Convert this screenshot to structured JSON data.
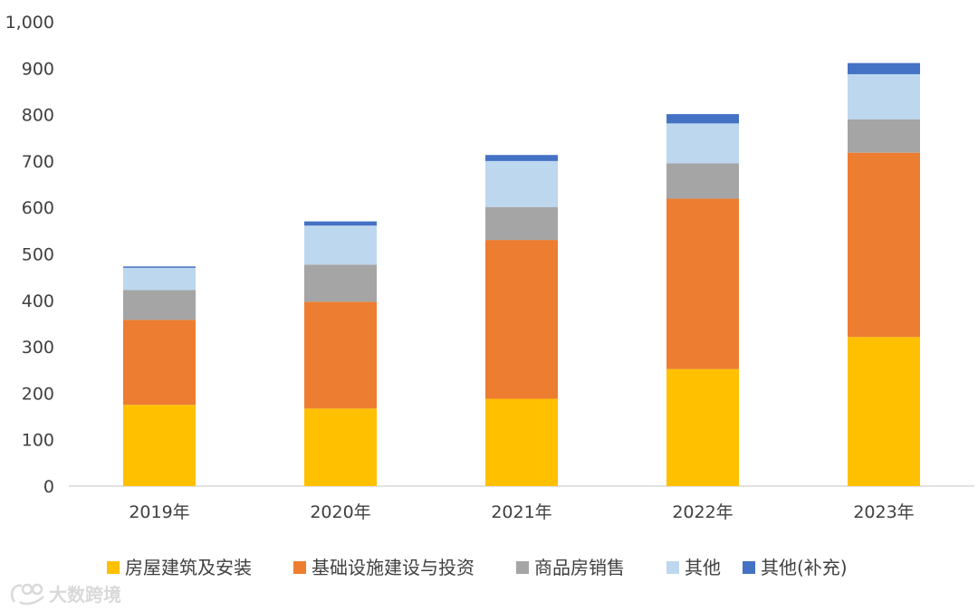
{
  "chart_data": {
    "type": "bar",
    "stacked": true,
    "categories": [
      "2019年",
      "2020年",
      "2021年",
      "2022年",
      "2023年"
    ],
    "series": [
      {
        "name": "房屋建筑及安装",
        "color": "#FFC000",
        "values": [
          175,
          167,
          188,
          252,
          321
        ]
      },
      {
        "name": "基础设施建设与投资",
        "color": "#ED7D31",
        "values": [
          183,
          230,
          342,
          367,
          397
        ]
      },
      {
        "name": "商品房销售",
        "color": "#A5A5A5",
        "values": [
          64,
          80,
          71,
          76,
          72
        ]
      },
      {
        "name": "其他",
        "color": "#BDD7EE",
        "values": [
          48,
          84,
          99,
          86,
          97
        ]
      },
      {
        "name": "其他(补充)",
        "color": "#4472C4",
        "values": [
          3,
          9,
          13,
          20,
          24
        ]
      }
    ],
    "yticks": [
      "0",
      "100",
      "200",
      "300",
      "400",
      "500",
      "600",
      "700",
      "800",
      "900",
      "1,000"
    ],
    "ylim": [
      0,
      1000
    ],
    "grid": false,
    "legend_position": "bottom"
  },
  "watermark": {
    "text": "大数跨境"
  }
}
